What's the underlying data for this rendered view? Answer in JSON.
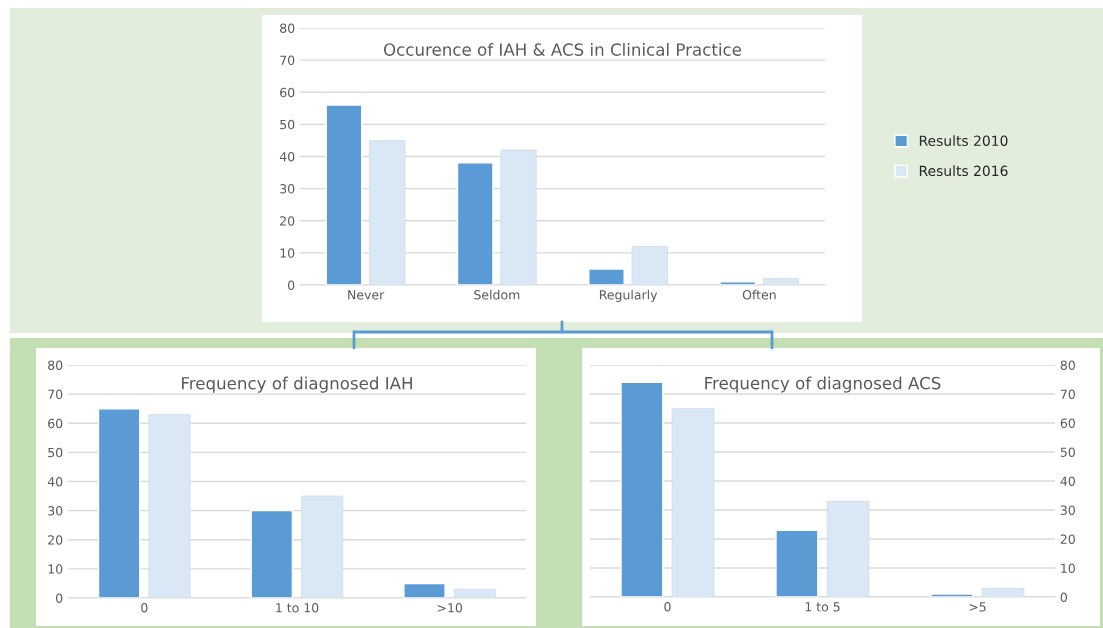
{
  "chart_data": [
    {
      "type": "bar",
      "title": "Occurence of IAH & ACS in Clinical Practice",
      "categories": [
        "Never",
        "Seldom",
        "Regularly",
        "Often"
      ],
      "series": [
        {
          "name": "Results 2010",
          "color": "#5b9bd5",
          "values": [
            56,
            38,
            5,
            1
          ]
        },
        {
          "name": "Results 2016",
          "color": "#dae8f5",
          "values": [
            45,
            42,
            12,
            2
          ]
        }
      ],
      "ylim": [
        0,
        80
      ],
      "yticks": [
        0,
        10,
        20,
        30,
        40,
        50,
        60,
        70,
        80
      ],
      "grid": "y",
      "legend": "right"
    },
    {
      "type": "bar",
      "title": "Frequency of diagnosed IAH",
      "categories": [
        "0",
        "1 to 10",
        ">10"
      ],
      "series": [
        {
          "color": "#5b9bd5",
          "values": [
            65,
            30,
            5
          ]
        },
        {
          "color": "#dae8f5",
          "values": [
            63,
            35,
            3
          ]
        }
      ],
      "ylim": [
        0,
        80
      ],
      "yticks": [
        0,
        10,
        20,
        30,
        40,
        50,
        60,
        70,
        80
      ],
      "grid": "y"
    },
    {
      "type": "bar",
      "title": "Frequency of diagnosed ACS",
      "categories": [
        "0",
        "1 to 5",
        ">5"
      ],
      "series": [
        {
          "color": "#5b9bd5",
          "values": [
            74,
            23,
            1
          ],
          "axis": "y2"
        },
        {
          "color": "#dae8f5",
          "values": [
            65,
            33,
            3
          ],
          "axis": "y2"
        }
      ],
      "y2lim": [
        0,
        80
      ],
      "y2ticks": [
        0,
        10,
        20,
        30,
        40,
        50,
        60,
        70,
        80
      ],
      "grid": "y"
    }
  ]
}
